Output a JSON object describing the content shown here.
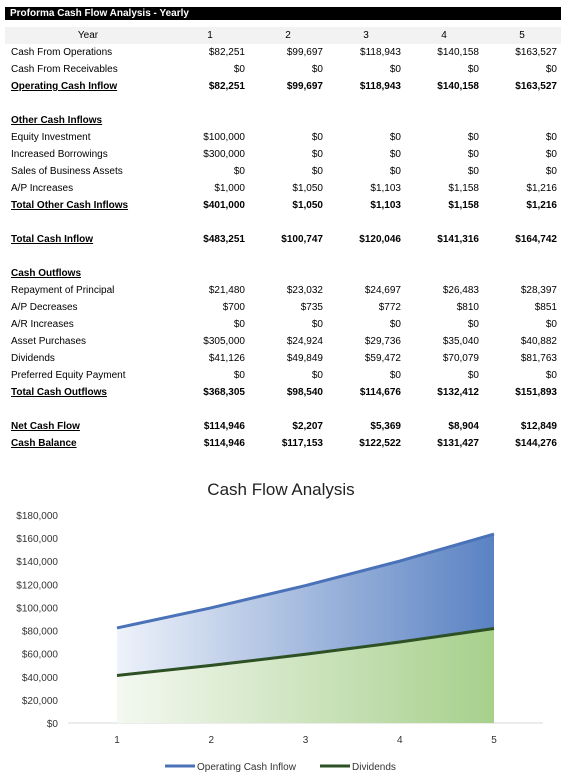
{
  "table": {
    "title": "Proforma Cash Flow Analysis - Yearly",
    "year_label": "Year",
    "years": [
      "1",
      "2",
      "3",
      "4",
      "5"
    ],
    "rows": [
      {
        "label": "Cash From Operations",
        "values": [
          "$82,251",
          "$99,697",
          "$118,943",
          "$140,158",
          "$163,527"
        ],
        "style": "normal"
      },
      {
        "label": "Cash From Receivables",
        "values": [
          "$0",
          "$0",
          "$0",
          "$0",
          "$0"
        ],
        "style": "normal"
      },
      {
        "label": "Operating Cash Inflow",
        "values": [
          "$82,251",
          "$99,697",
          "$118,943",
          "$140,158",
          "$163,527"
        ],
        "style": "bold"
      },
      {
        "label": "",
        "values": [
          "",
          "",
          "",
          "",
          ""
        ],
        "style": "spacer"
      },
      {
        "label": "Other Cash Inflows",
        "values": [
          "",
          "",
          "",
          "",
          ""
        ],
        "style": "bold"
      },
      {
        "label": "Equity Investment",
        "values": [
          "$100,000",
          "$0",
          "$0",
          "$0",
          "$0"
        ],
        "style": "normal"
      },
      {
        "label": "Increased Borrowings",
        "values": [
          "$300,000",
          "$0",
          "$0",
          "$0",
          "$0"
        ],
        "style": "normal"
      },
      {
        "label": "Sales of Business Assets",
        "values": [
          "$0",
          "$0",
          "$0",
          "$0",
          "$0"
        ],
        "style": "normal"
      },
      {
        "label": "A/P Increases",
        "values": [
          "$1,000",
          "$1,050",
          "$1,103",
          "$1,158",
          "$1,216"
        ],
        "style": "normal"
      },
      {
        "label": "Total Other Cash Inflows",
        "values": [
          "$401,000",
          "$1,050",
          "$1,103",
          "$1,158",
          "$1,216"
        ],
        "style": "bold"
      },
      {
        "label": "",
        "values": [
          "",
          "",
          "",
          "",
          ""
        ],
        "style": "spacer"
      },
      {
        "label": "Total Cash Inflow",
        "values": [
          "$483,251",
          "$100,747",
          "$120,046",
          "$141,316",
          "$164,742"
        ],
        "style": "bold"
      },
      {
        "label": "",
        "values": [
          "",
          "",
          "",
          "",
          ""
        ],
        "style": "spacer"
      },
      {
        "label": "Cash Outflows",
        "values": [
          "",
          "",
          "",
          "",
          ""
        ],
        "style": "bold"
      },
      {
        "label": "Repayment of Principal",
        "values": [
          "$21,480",
          "$23,032",
          "$24,697",
          "$26,483",
          "$28,397"
        ],
        "style": "normal"
      },
      {
        "label": "A/P Decreases",
        "values": [
          "$700",
          "$735",
          "$772",
          "$810",
          "$851"
        ],
        "style": "normal"
      },
      {
        "label": "A/R Increases",
        "values": [
          "$0",
          "$0",
          "$0",
          "$0",
          "$0"
        ],
        "style": "normal"
      },
      {
        "label": "Asset Purchases",
        "values": [
          "$305,000",
          "$24,924",
          "$29,736",
          "$35,040",
          "$40,882"
        ],
        "style": "normal"
      },
      {
        "label": "Dividends",
        "values": [
          "$41,126",
          "$49,849",
          "$59,472",
          "$70,079",
          "$81,763"
        ],
        "style": "normal"
      },
      {
        "label": "Preferred Equity Payment",
        "values": [
          "$0",
          "$0",
          "$0",
          "$0",
          "$0"
        ],
        "style": "normal"
      },
      {
        "label": "Total Cash Outflows",
        "values": [
          "$368,305",
          "$98,540",
          "$114,676",
          "$132,412",
          "$151,893"
        ],
        "style": "bold"
      },
      {
        "label": "",
        "values": [
          "",
          "",
          "",
          "",
          ""
        ],
        "style": "spacer"
      },
      {
        "label": "Net Cash Flow",
        "values": [
          "$114,946",
          "$2,207",
          "$5,369",
          "$8,904",
          "$12,849"
        ],
        "style": "bold"
      },
      {
        "label": "Cash Balance",
        "values": [
          "$114,946",
          "$117,153",
          "$122,522",
          "$131,427",
          "$144,276"
        ],
        "style": "bold"
      }
    ]
  },
  "chart_data": {
    "type": "area",
    "title": "Cash Flow Analysis",
    "x": [
      1,
      2,
      3,
      4,
      5
    ],
    "series": [
      {
        "name": "Operating Cash Inflow",
        "values": [
          82251,
          99697,
          118943,
          140158,
          163527
        ],
        "color": "#4a72b8"
      },
      {
        "name": "Dividends",
        "values": [
          41126,
          49849,
          59472,
          70079,
          81763
        ],
        "color": "#2e5025"
      }
    ],
    "ylim": [
      0,
      180000
    ],
    "yticks": [
      "$0",
      "$20,000",
      "$40,000",
      "$60,000",
      "$80,000",
      "$100,000",
      "$120,000",
      "$140,000",
      "$160,000",
      "$180,000"
    ],
    "xticks": [
      "1",
      "2",
      "3",
      "4",
      "5"
    ],
    "grid": false,
    "legend": "bottom"
  }
}
